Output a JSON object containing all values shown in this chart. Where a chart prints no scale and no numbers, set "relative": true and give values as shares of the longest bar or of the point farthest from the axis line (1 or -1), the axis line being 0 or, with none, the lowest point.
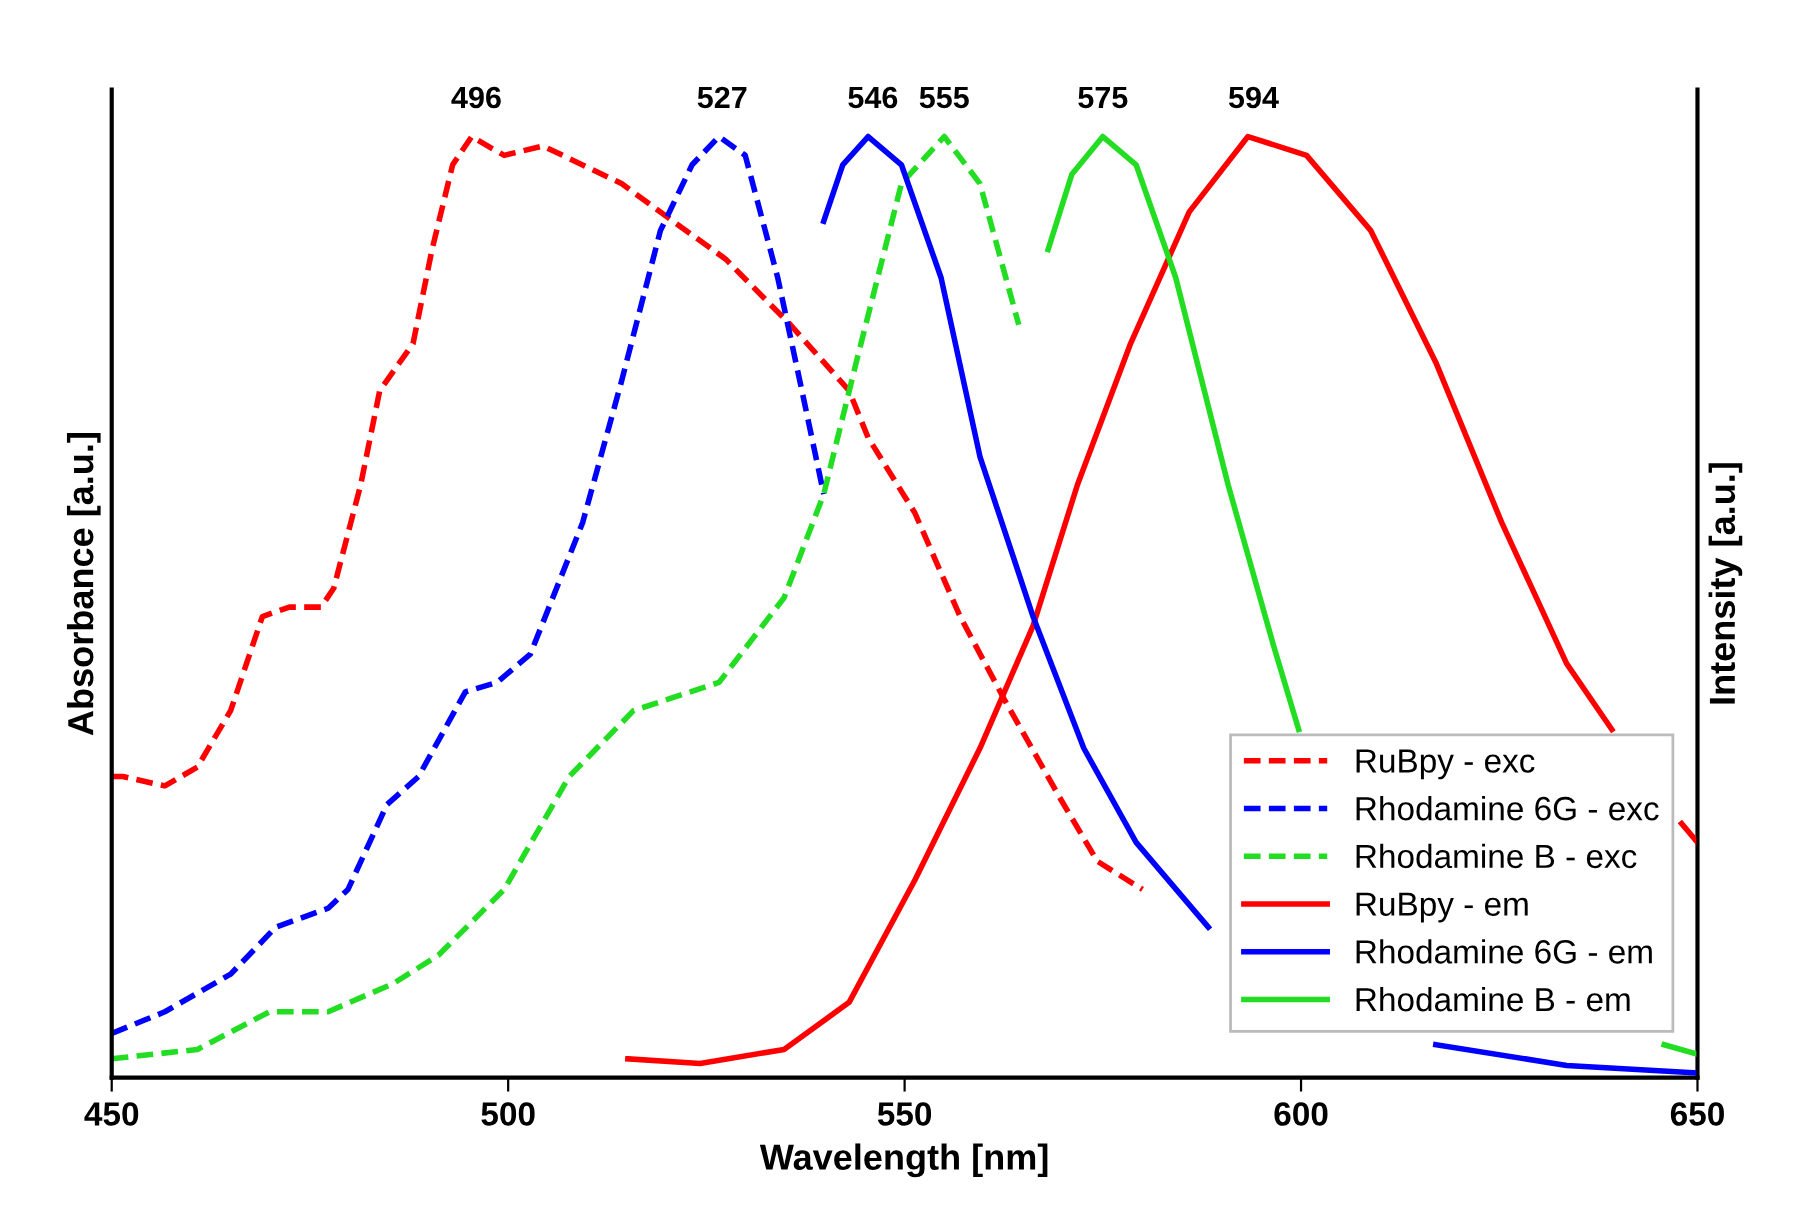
{
  "chart_data": {
    "type": "line",
    "relative": true,
    "xlabel": "Wavelength [nm]",
    "ylabel": "Absorbance [a.u.]",
    "y2label": "Intensity [a.u.]",
    "xlim": [
      450,
      650
    ],
    "xticks": [
      450,
      500,
      550,
      600,
      650
    ],
    "grid": false,
    "legend": "bottom right",
    "marker": "none",
    "series": [
      {
        "name": "RuBpy - exc",
        "color": "#ff0000",
        "line_style": "dashed",
        "x": [
          450,
          451.4,
          456.7,
          460.8,
          465,
          469,
          472.4,
          476.4,
          478,
          481.4,
          483.8,
          488,
          490.4,
          493,
          495.4,
          497.4,
          499.5,
          504.4,
          514.3,
          520.8,
          527.4,
          535.6,
          543,
          545.4,
          551.3,
          557,
          562.7,
          569.4,
          574.3,
          580
        ],
        "values": [
          0.32,
          0.32,
          0.31,
          0.33,
          0.39,
          0.49,
          0.5,
          0.5,
          0.52,
          0.63,
          0.73,
          0.78,
          0.88,
          0.97,
          1.0,
          0.99,
          0.98,
          0.99,
          0.95,
          0.91,
          0.87,
          0.8,
          0.73,
          0.68,
          0.6,
          0.49,
          0.4,
          0.3,
          0.23,
          0.2
        ]
      },
      {
        "name": "Rhodamine 6G - exc",
        "color": "#0000ff",
        "line_style": "dashed",
        "x": [
          450,
          456.7,
          465,
          470.7,
          477.3,
          479.8,
          484.7,
          488.7,
          494.6,
          498.6,
          502.8,
          509.4,
          514.3,
          519.2,
          523.2,
          526.6,
          529.9,
          534,
          537.3,
          539.8
        ],
        "values": [
          0.047,
          0.07,
          0.11,
          0.16,
          0.18,
          0.2,
          0.29,
          0.32,
          0.41,
          0.42,
          0.45,
          0.59,
          0.74,
          0.9,
          0.97,
          1.0,
          0.98,
          0.85,
          0.72,
          0.62
        ]
      },
      {
        "name": "Rhodamine B - exc",
        "color": "#22dd22",
        "line_style": "dashed",
        "x": [
          450,
          460.8,
          469.9,
          477.3,
          485.5,
          491.2,
          499.5,
          507.7,
          515.8,
          526.6,
          534.8,
          539.8,
          543.9,
          549.6,
          555,
          559.5,
          564.4
        ],
        "values": [
          0.02,
          0.03,
          0.07,
          0.07,
          0.1,
          0.13,
          0.2,
          0.32,
          0.39,
          0.42,
          0.51,
          0.62,
          0.76,
          0.95,
          1.0,
          0.95,
          0.8
        ]
      },
      {
        "name": "RuBpy - em",
        "color": "#ff0000",
        "line_style": "solid",
        "axis": "y2",
        "x": [
          515.1,
          524.2,
          534.8,
          543,
          551.3,
          559.5,
          566.2,
          571.8,
          578.5,
          585.9,
          593.3,
          600.7,
          608.8,
          617,
          625.3,
          633.5,
          639.2,
          641.6,
          648,
          650
        ],
        "values": [
          0.02,
          0.015,
          0.03,
          0.08,
          0.21,
          0.35,
          0.48,
          0.63,
          0.78,
          0.92,
          1.0,
          0.98,
          0.9,
          0.76,
          0.59,
          0.44,
          0.37,
          null,
          0.27,
          0.25
        ]
      },
      {
        "name": "Rhodamine 6G - em",
        "color": "#0000ff",
        "line_style": "solid",
        "axis": "y2",
        "x": [
          539.8,
          542.2,
          545.4,
          549.6,
          554.6,
          559.5,
          566.2,
          572.6,
          579.2,
          588.3,
          600.7,
          617,
          633.5,
          650
        ],
        "values": [
          0.91,
          0.97,
          1.0,
          0.97,
          0.85,
          0.66,
          0.49,
          0.35,
          0.25,
          0.16,
          null,
          0.035,
          0.013,
          0.005
        ]
      },
      {
        "name": "Rhodamine B - em",
        "color": "#22dd22",
        "line_style": "solid",
        "axis": "y2",
        "x": [
          568.1,
          571.1,
          575,
          579.2,
          584.2,
          590.8,
          596.5,
          599.7,
          620,
          645.8,
          650
        ],
        "values": [
          0.88,
          0.96,
          1.0,
          0.97,
          0.85,
          0.63,
          0.46,
          0.37,
          null,
          0.035,
          0.025
        ]
      }
    ],
    "annotations": [
      {
        "text": "496",
        "x": 496,
        "y": 1.0
      },
      {
        "text": "527",
        "x": 527,
        "y": 1.0
      },
      {
        "text": "546",
        "x": 546,
        "y": 1.0
      },
      {
        "text": "555",
        "x": 555,
        "y": 1.0
      },
      {
        "text": "575",
        "x": 575,
        "y": 1.0
      },
      {
        "text": "594",
        "x": 594,
        "y": 1.0
      }
    ]
  }
}
